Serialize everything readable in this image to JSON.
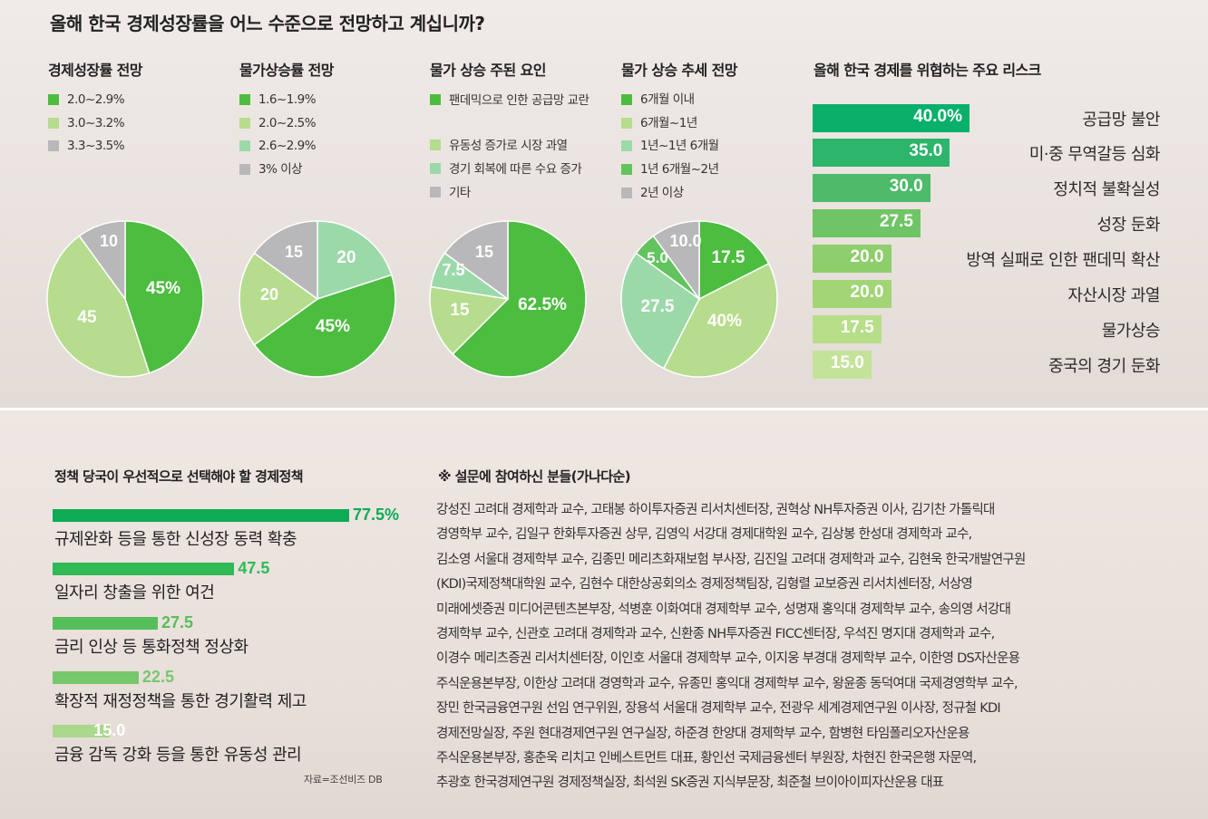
{
  "colors": {
    "g1": "#4cbd3f",
    "g2": "#b6dc8e",
    "gray": "#b8b8ba",
    "mint": "#9cd9a9",
    "gmid": "#62c35f",
    "risk_bars": [
      "#08b06a",
      "#2db56c",
      "#4dbb6a",
      "#6fc466",
      "#8fce6c",
      "#a2d576",
      "#b7de88",
      "#c4e39a"
    ],
    "policy_bars": [
      "#0eab55",
      "#2fba55",
      "#56bf5b",
      "#77c76c",
      "#a8d98c"
    ]
  },
  "title": "올해 한국 경제성장률을 어느 수준으로 전망하고 계십니까?",
  "chart_data": [
    {
      "type": "pie",
      "title": "경제성장률 전망",
      "legend": [
        "2.0~2.9%",
        "3.0~3.2%",
        "3.3~3.5%"
      ],
      "slices": [
        {
          "label": "2.0~2.9%",
          "value": 45,
          "text": "45%",
          "color": "#4cbd3f"
        },
        {
          "label": "3.0~3.2%",
          "value": 45,
          "text": "45",
          "color": "#b6dc8e"
        },
        {
          "label": "3.3~3.5%",
          "value": 10,
          "text": "10",
          "color": "#b8b8ba"
        }
      ]
    },
    {
      "type": "pie",
      "title": "물가상승률 전망",
      "legend": [
        "1.6~1.9%",
        "2.0~2.5%",
        "2.6~2.9%",
        "3% 이상"
      ],
      "slices": [
        {
          "label": "2.6~2.9%",
          "value": 20,
          "text": "20",
          "color": "#9cd9a9"
        },
        {
          "label": "1.6~1.9%",
          "value": 45,
          "text": "45%",
          "color": "#4cbd3f"
        },
        {
          "label": "2.0~2.5%",
          "value": 20,
          "text": "20",
          "color": "#b6dc8e"
        },
        {
          "label": "3% 이상",
          "value": 15,
          "text": "15",
          "color": "#b8b8ba"
        }
      ]
    },
    {
      "type": "pie",
      "title": "물가 상승 주된 요인",
      "legend": [
        "팬데믹으로 인한 공급망 교란",
        "유동성 증가로 시장 과열",
        "경기 회복에 따른 수요 증가",
        "기타"
      ],
      "slices": [
        {
          "label": "팬데믹으로 인한 공급망 교란",
          "value": 62.5,
          "text": "62.5%",
          "color": "#4cbd3f"
        },
        {
          "label": "유동성 증가로 시장 과열",
          "value": 15,
          "text": "15",
          "color": "#b6dc8e"
        },
        {
          "label": "경기 회복에 따른 수요 증가",
          "value": 7.5,
          "text": "7.5",
          "color": "#9cd9a9"
        },
        {
          "label": "기타",
          "value": 15,
          "text": "15",
          "color": "#b8b8ba"
        }
      ]
    },
    {
      "type": "pie",
      "title": "물가 상승 추세 전망",
      "legend": [
        "6개월 이내",
        "6개월~1년",
        "1년~1년 6개월",
        "1년 6개월~2년",
        "2년 이상"
      ],
      "slices": [
        {
          "label": "6개월 이내",
          "value": 17.5,
          "text": "17.5",
          "color": "#4cbd3f"
        },
        {
          "label": "6개월~1년",
          "value": 40,
          "text": "40%",
          "color": "#b6dc8e"
        },
        {
          "label": "1년~1년 6개월",
          "value": 27.5,
          "text": "27.5",
          "color": "#9cd9a9"
        },
        {
          "label": "1년 6개월~2년",
          "value": 5,
          "text": "5.0",
          "color": "#62c35f"
        },
        {
          "label": "2년 이상",
          "value": 10,
          "text": "10.0",
          "color": "#b8b8ba"
        }
      ]
    },
    {
      "type": "bar",
      "title": "올해 한국 경제를 위협하는 주요 리스크",
      "categories": [
        "공급망 불안",
        "미·중 무역갈등 심화",
        "정치적 불확실성",
        "성장 둔화",
        "방역 실패로 인한 팬데믹 확산",
        "자산시장 과열",
        "물가상승",
        "중국의 경기 둔화"
      ],
      "values": [
        40.0,
        35.0,
        30.0,
        27.5,
        20.0,
        20.0,
        17.5,
        15.0
      ],
      "value_labels": [
        "40.0%",
        "35.0",
        "30.0",
        "27.5",
        "20.0",
        "20.0",
        "17.5",
        "15.0"
      ]
    },
    {
      "type": "bar",
      "title": "정책 당국이 우선적으로 선택해야 할 경제정책",
      "categories": [
        "규제완화 등을 통한 신성장 동력 확충",
        "일자리 창출을 위한 여건",
        "금리 인상 등 통화정책 정상화",
        "확장적 재정정책을 통한 경기활력 제고",
        "금융 감독 강화 등을 통한 유동성 관리"
      ],
      "values": [
        77.5,
        47.5,
        27.5,
        22.5,
        15.0
      ],
      "value_labels": [
        "77.5%",
        "47.5",
        "27.5",
        "22.5",
        "15.0"
      ]
    }
  ],
  "source": "자료=조선비즈 DB",
  "respondents": {
    "title": "※ 설문에 참여하신 분들(가나다순)",
    "lines": [
      "강성진 고려대 경제학과 교수, 고태봉 하이투자증권 리서치센터장, 권혁상 NH투자증권 이사, 김기찬 가톨릭대",
      "경영학부 교수, 김일구 한화투자증권 상무, 김영익 서강대 경제대학원 교수, 김상봉 한성대 경제학과 교수,",
      "김소영 서울대 경제학부 교수, 김종민 메리츠화재보험 부사장, 김진일 고려대 경제학과 교수, 김현욱 한국개발연구원",
      "(KDI)국제정책대학원 교수, 김현수 대한상공회의소 경제정책팀장, 김형렬 교보증권 리서치센터장, 서상영",
      "미래에셋증권 미디어콘텐츠본부장, 석병훈 이화여대 경제학부 교수, 성명재 홍익대 경제학부 교수, 송의영 서강대",
      "경제학부 교수, 신관호 고려대 경제학과 교수, 신환종 NH투자증권 FICC센터장, 우석진 명지대 경제학과 교수,",
      "이경수 메리츠증권 리서치센터장, 이인호 서울대 경제학부 교수, 이지웅 부경대 경제학부 교수, 이한영 DS자산운용",
      "주식운용본부장, 이한상 고려대 경영학과 교수, 유종민 홍익대 경제학부 교수, 왕윤종 동덕여대 국제경영학부 교수,",
      "장민 한국금융연구원 선임 연구위원, 장용석 서울대 경제학부 교수, 전광우 세계경제연구원 이사장, 정규철 KDI",
      "경제전망실장, 주원 현대경제연구원 연구실장, 하준경 한양대 경제학부 교수, 함병현 타임폴리오자산운용",
      "주식운용본부장, 홍춘욱 리치고 인베스트먼트 대표, 황인선 국제금융센터 부원장, 차현진 한국은행 자문역,",
      "추광호 한국경제연구원 경제정책실장, 최석원 SK증권 지식부문장, 최준철 브이아이피자산운용 대표"
    ]
  }
}
